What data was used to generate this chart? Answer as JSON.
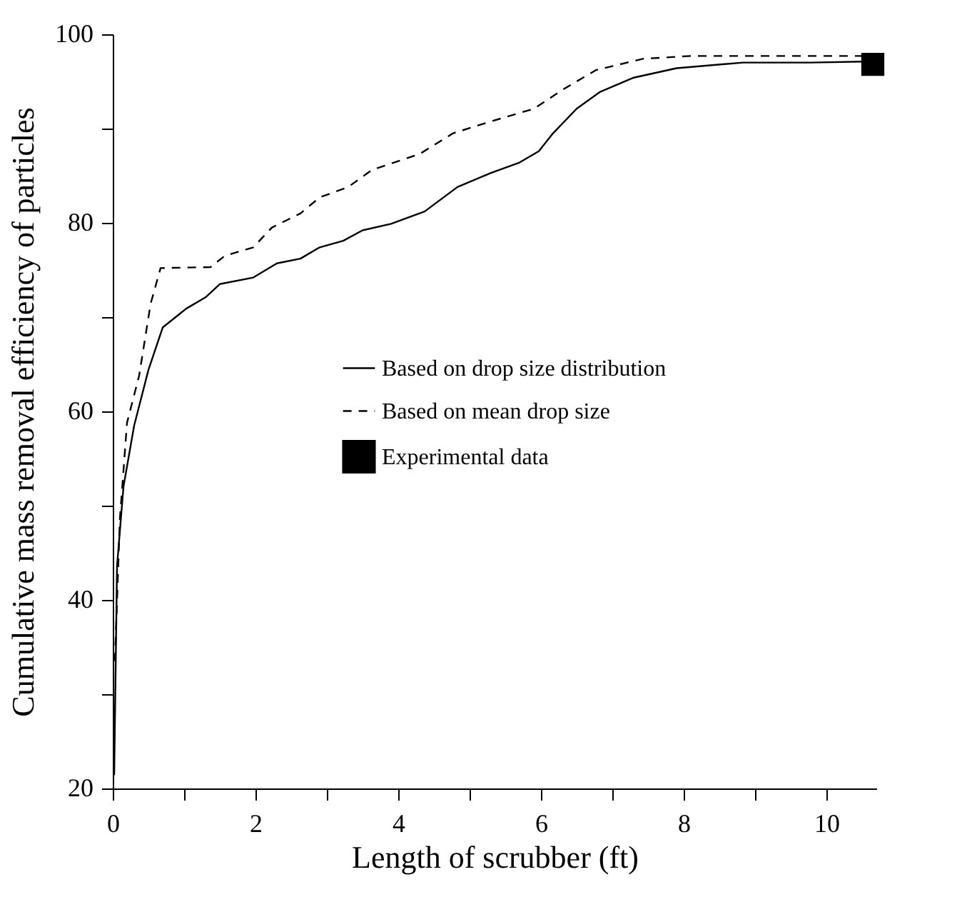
{
  "chart_data": {
    "type": "line",
    "xlabel": "Length of scrubber (ft)",
    "ylabel": "Cumulative mass removal efficiency of particles",
    "xlim": [
      0,
      10.7
    ],
    "ylim": [
      20,
      100
    ],
    "xticks": [
      0,
      {
        "value": 1,
        "label": null
      },
      2,
      {
        "value": 3,
        "label": null
      },
      4,
      {
        "value": 5,
        "label": null
      },
      6,
      {
        "value": 7,
        "label": null
      },
      8,
      {
        "value": 9,
        "label": null
      },
      10
    ],
    "yticks": [
      20,
      {
        "value": 30,
        "label": null
      },
      40,
      {
        "value": 50,
        "label": null
      },
      60,
      {
        "value": 70,
        "label": null
      },
      80,
      {
        "value": 90,
        "label": null
      },
      100
    ],
    "grid": false,
    "legend": "right",
    "marker": "none",
    "series": [
      {
        "name": "Based on drop size distribution",
        "color": "#000000",
        "line_style": "solid",
        "x": [
          0.02,
          0.06,
          0.15,
          0.3,
          0.5,
          0.7,
          1.03,
          1.3,
          1.5,
          1.97,
          2.3,
          2.63,
          2.9,
          3.23,
          3.5,
          3.9,
          4.37,
          4.83,
          5.3,
          5.7,
          5.97,
          6.17,
          6.5,
          6.83,
          7.3,
          7.9,
          8.83,
          9.77,
          10.5
        ],
        "values": [
          21.4,
          43.6,
          52,
          58.5,
          64.4,
          68.9,
          70.9,
          72.1,
          73.5,
          74.2,
          75.7,
          76.2,
          77.4,
          78.1,
          79.2,
          79.9,
          81.2,
          83.8,
          85.3,
          86.4,
          87.6,
          89.5,
          92.1,
          93.9,
          95.4,
          96.4,
          97.0,
          97.0,
          97.1
        ]
      },
      {
        "name": "Based on mean drop size",
        "color": "#000000",
        "line_style": "dashed",
        "x": [
          0.03,
          0.1,
          0.2,
          0.37,
          0.53,
          0.67,
          1.37,
          1.57,
          1.97,
          2.23,
          2.63,
          2.9,
          3.3,
          3.63,
          4.3,
          4.77,
          5.23,
          5.9,
          6.3,
          6.77,
          7.43,
          8.1,
          10.5
        ],
        "values": [
          33.5,
          48.6,
          58.8,
          63.8,
          71.4,
          75.2,
          75.3,
          76.5,
          77.4,
          79.5,
          81.0,
          82.7,
          83.8,
          85.6,
          87.3,
          89.5,
          90.6,
          92.1,
          94.1,
          96.2,
          97.4,
          97.7,
          97.7
        ]
      },
      {
        "name": "Experimental data",
        "color": "#000000",
        "type": "scatter",
        "marker": "square",
        "x": [
          10.65
        ],
        "values": [
          96.8
        ]
      }
    ]
  }
}
